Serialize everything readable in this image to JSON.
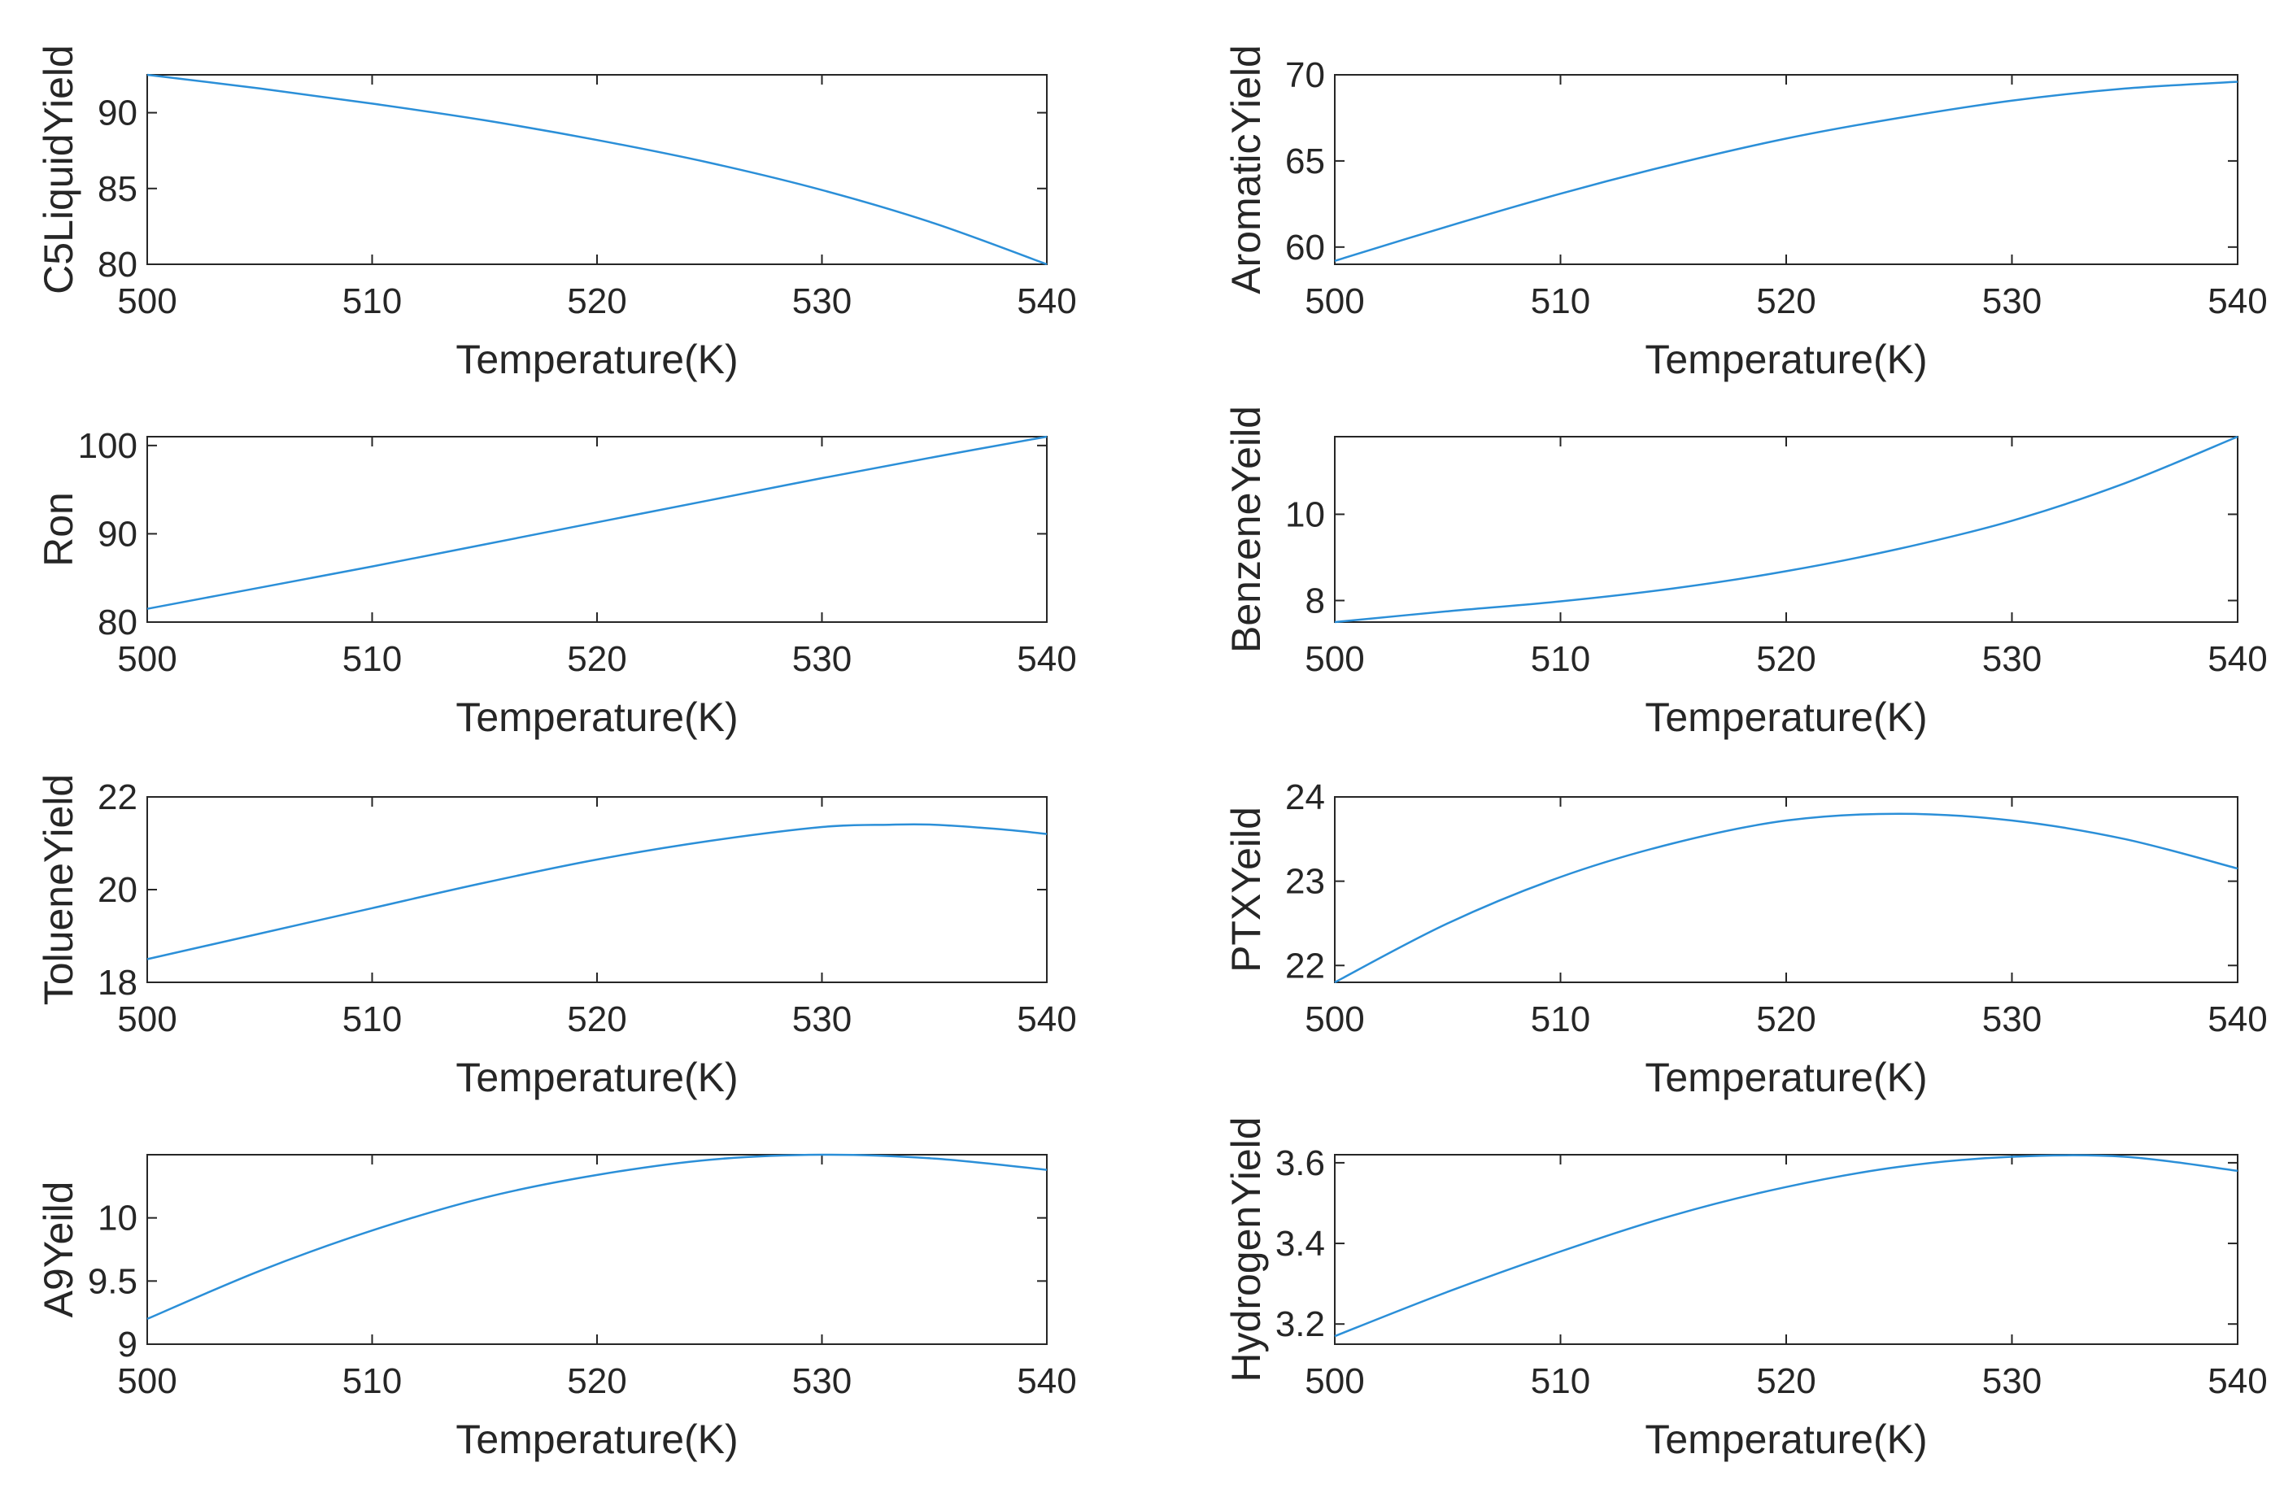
{
  "figure": {
    "series_color": "#2b8fd8"
  },
  "chart_data": [
    {
      "type": "line",
      "xlabel": "Temperature(K)",
      "ylabel": "C5LiquidYield",
      "xlim": [
        500,
        540
      ],
      "ylim": [
        80,
        92.5
      ],
      "xticks": [
        500,
        510,
        520,
        530,
        540
      ],
      "yticks": [
        80,
        85,
        90
      ],
      "x": [
        500,
        505,
        510,
        515,
        520,
        525,
        530,
        535,
        540
      ],
      "y": [
        92.5,
        91.6,
        90.6,
        89.5,
        88.2,
        86.7,
        84.9,
        82.7,
        80.0
      ]
    },
    {
      "type": "line",
      "xlabel": "Temperature(K)",
      "ylabel": "AromaticYield",
      "xlim": [
        500,
        540
      ],
      "ylim": [
        59,
        70
      ],
      "xticks": [
        500,
        510,
        520,
        530,
        540
      ],
      "yticks": [
        60,
        65,
        70
      ],
      "x": [
        500,
        505,
        510,
        515,
        520,
        525,
        530,
        535,
        540
      ],
      "y": [
        59.2,
        61.2,
        63.1,
        64.8,
        66.3,
        67.5,
        68.5,
        69.2,
        69.6
      ]
    },
    {
      "type": "line",
      "xlabel": "Temperature(K)",
      "ylabel": "Ron",
      "xlim": [
        500,
        540
      ],
      "ylim": [
        80,
        101
      ],
      "xticks": [
        500,
        510,
        520,
        530,
        540
      ],
      "yticks": [
        80,
        90,
        100
      ],
      "x": [
        500,
        505,
        510,
        515,
        520,
        525,
        530,
        535,
        540
      ],
      "y": [
        81.5,
        83.9,
        86.3,
        88.8,
        91.3,
        93.8,
        96.3,
        98.7,
        101.0
      ]
    },
    {
      "type": "line",
      "xlabel": "Temperature(K)",
      "ylabel": "BenzeneYeild",
      "xlim": [
        500,
        540
      ],
      "ylim": [
        7.5,
        11.8
      ],
      "xticks": [
        500,
        510,
        520,
        530,
        540
      ],
      "yticks": [
        8,
        10
      ],
      "x": [
        500,
        505,
        510,
        515,
        520,
        525,
        530,
        535,
        540
      ],
      "y": [
        7.5,
        7.75,
        7.98,
        8.28,
        8.68,
        9.2,
        9.85,
        10.72,
        11.8
      ]
    },
    {
      "type": "line",
      "xlabel": "Temperature(K)",
      "ylabel": "TolueneYield",
      "xlim": [
        500,
        540
      ],
      "ylim": [
        18,
        22
      ],
      "xticks": [
        500,
        510,
        520,
        530,
        540
      ],
      "yticks": [
        18,
        20,
        22
      ],
      "x": [
        500,
        505,
        510,
        515,
        520,
        525,
        530,
        533,
        535,
        538,
        540
      ],
      "y": [
        18.5,
        19.05,
        19.6,
        20.15,
        20.65,
        21.05,
        21.35,
        21.4,
        21.4,
        21.3,
        21.2
      ]
    },
    {
      "type": "line",
      "xlabel": "Temperature(K)",
      "ylabel": "PTXYeild",
      "xlim": [
        500,
        540
      ],
      "ylim": [
        21.8,
        24
      ],
      "xticks": [
        500,
        510,
        520,
        530,
        540
      ],
      "yticks": [
        22,
        23,
        24
      ],
      "x": [
        500,
        505,
        510,
        515,
        520,
        525,
        530,
        535,
        540
      ],
      "y": [
        21.8,
        22.5,
        23.05,
        23.45,
        23.72,
        23.8,
        23.72,
        23.5,
        23.15
      ]
    },
    {
      "type": "line",
      "xlabel": "Temperature(K)",
      "ylabel": "A9Yeild",
      "xlim": [
        500,
        540
      ],
      "ylim": [
        9,
        10.5
      ],
      "xticks": [
        500,
        510,
        520,
        530,
        540
      ],
      "yticks": [
        9,
        9.5,
        10
      ],
      "x": [
        500,
        505,
        510,
        515,
        520,
        525,
        530,
        535,
        540
      ],
      "y": [
        9.2,
        9.58,
        9.9,
        10.16,
        10.34,
        10.46,
        10.5,
        10.47,
        10.38
      ]
    },
    {
      "type": "line",
      "xlabel": "Temperature(K)",
      "ylabel": "HydrogenYield",
      "xlim": [
        500,
        540
      ],
      "ylim": [
        3.15,
        3.62
      ],
      "xticks": [
        500,
        510,
        520,
        530,
        540
      ],
      "yticks": [
        3.2,
        3.4,
        3.6
      ],
      "x": [
        500,
        505,
        510,
        515,
        520,
        525,
        530,
        535,
        540
      ],
      "y": [
        3.17,
        3.28,
        3.38,
        3.47,
        3.54,
        3.59,
        3.615,
        3.615,
        3.58
      ]
    }
  ]
}
